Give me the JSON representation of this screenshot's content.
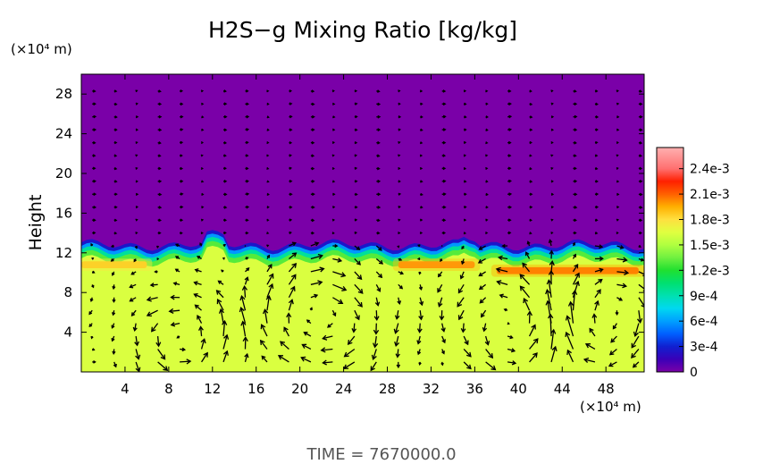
{
  "chart_data": {
    "type": "heatmap",
    "title": "H2S−g Mixing Ratio [kg/kg]",
    "ylabel": "Height",
    "y_unit": "(×10⁴ m)",
    "x_unit": "(×10⁴ m)",
    "footer": "TIME  =  7670000.0",
    "x_ticks": [
      "4",
      "8",
      "12",
      "16",
      "20",
      "24",
      "28",
      "32",
      "36",
      "40",
      "44",
      "48"
    ],
    "y_ticks": [
      "4",
      "8",
      "12",
      "16",
      "20",
      "24",
      "28"
    ],
    "xlim": [
      0,
      51.5
    ],
    "ylim": [
      0,
      30
    ],
    "colorbar": {
      "labels": [
        "0",
        "3e-4",
        "6e-4",
        "9e-4",
        "1.2e-3",
        "1.5e-3",
        "1.8e-3",
        "2.1e-3",
        "2.4e-3"
      ],
      "label_values": [
        0,
        0.0003,
        0.0006,
        0.0009,
        0.0012,
        0.0015,
        0.0018,
        0.0021,
        0.0024
      ],
      "range": [
        0,
        0.00265
      ],
      "stops": [
        {
          "value": 0,
          "color": "#7a00a8"
        },
        {
          "value": 0.00015,
          "color": "#3a00b8"
        },
        {
          "value": 0.0003,
          "color": "#1020d0"
        },
        {
          "value": 0.00045,
          "color": "#0060ff"
        },
        {
          "value": 0.0006,
          "color": "#00a0ff"
        },
        {
          "value": 0.00075,
          "color": "#00d8f0"
        },
        {
          "value": 0.0009,
          "color": "#00e0b0"
        },
        {
          "value": 0.00105,
          "color": "#00e070"
        },
        {
          "value": 0.0012,
          "color": "#20e030"
        },
        {
          "value": 0.00135,
          "color": "#70f040"
        },
        {
          "value": 0.0015,
          "color": "#b0ff40"
        },
        {
          "value": 0.00165,
          "color": "#e0ff40"
        },
        {
          "value": 0.0018,
          "color": "#ffe040"
        },
        {
          "value": 0.00195,
          "color": "#ffb000"
        },
        {
          "value": 0.0021,
          "color": "#ff6000"
        },
        {
          "value": 0.00225,
          "color": "#ff2000"
        },
        {
          "value": 0.0024,
          "color": "#ff7070"
        },
        {
          "value": 0.00265,
          "color": "#ffb0b0"
        }
      ]
    },
    "field_summary": {
      "upper_layer_value": 0,
      "lower_layer_value": 0.00163,
      "layer_top_height": 12.8,
      "plume_layers": [
        {
          "x_start": 29,
          "x_end": 36,
          "height": 10.8,
          "value": 0.00205
        },
        {
          "x_start": 38,
          "x_end": 51,
          "height": 10.2,
          "value": 0.0021
        },
        {
          "x_start": 0,
          "x_end": 6,
          "height": 10.8,
          "value": 0.0019
        }
      ]
    },
    "vector_field": {
      "description": "velocity arrows",
      "overturning_cells": [
        {
          "x": 9,
          "y": 3.5,
          "radius": 3.5
        },
        {
          "x": 22,
          "y": 5.5,
          "radius": 4
        },
        {
          "x": 40,
          "y": 5,
          "radius": 4
        },
        {
          "x": 47,
          "y": 5.5,
          "radius": 4
        }
      ]
    }
  }
}
